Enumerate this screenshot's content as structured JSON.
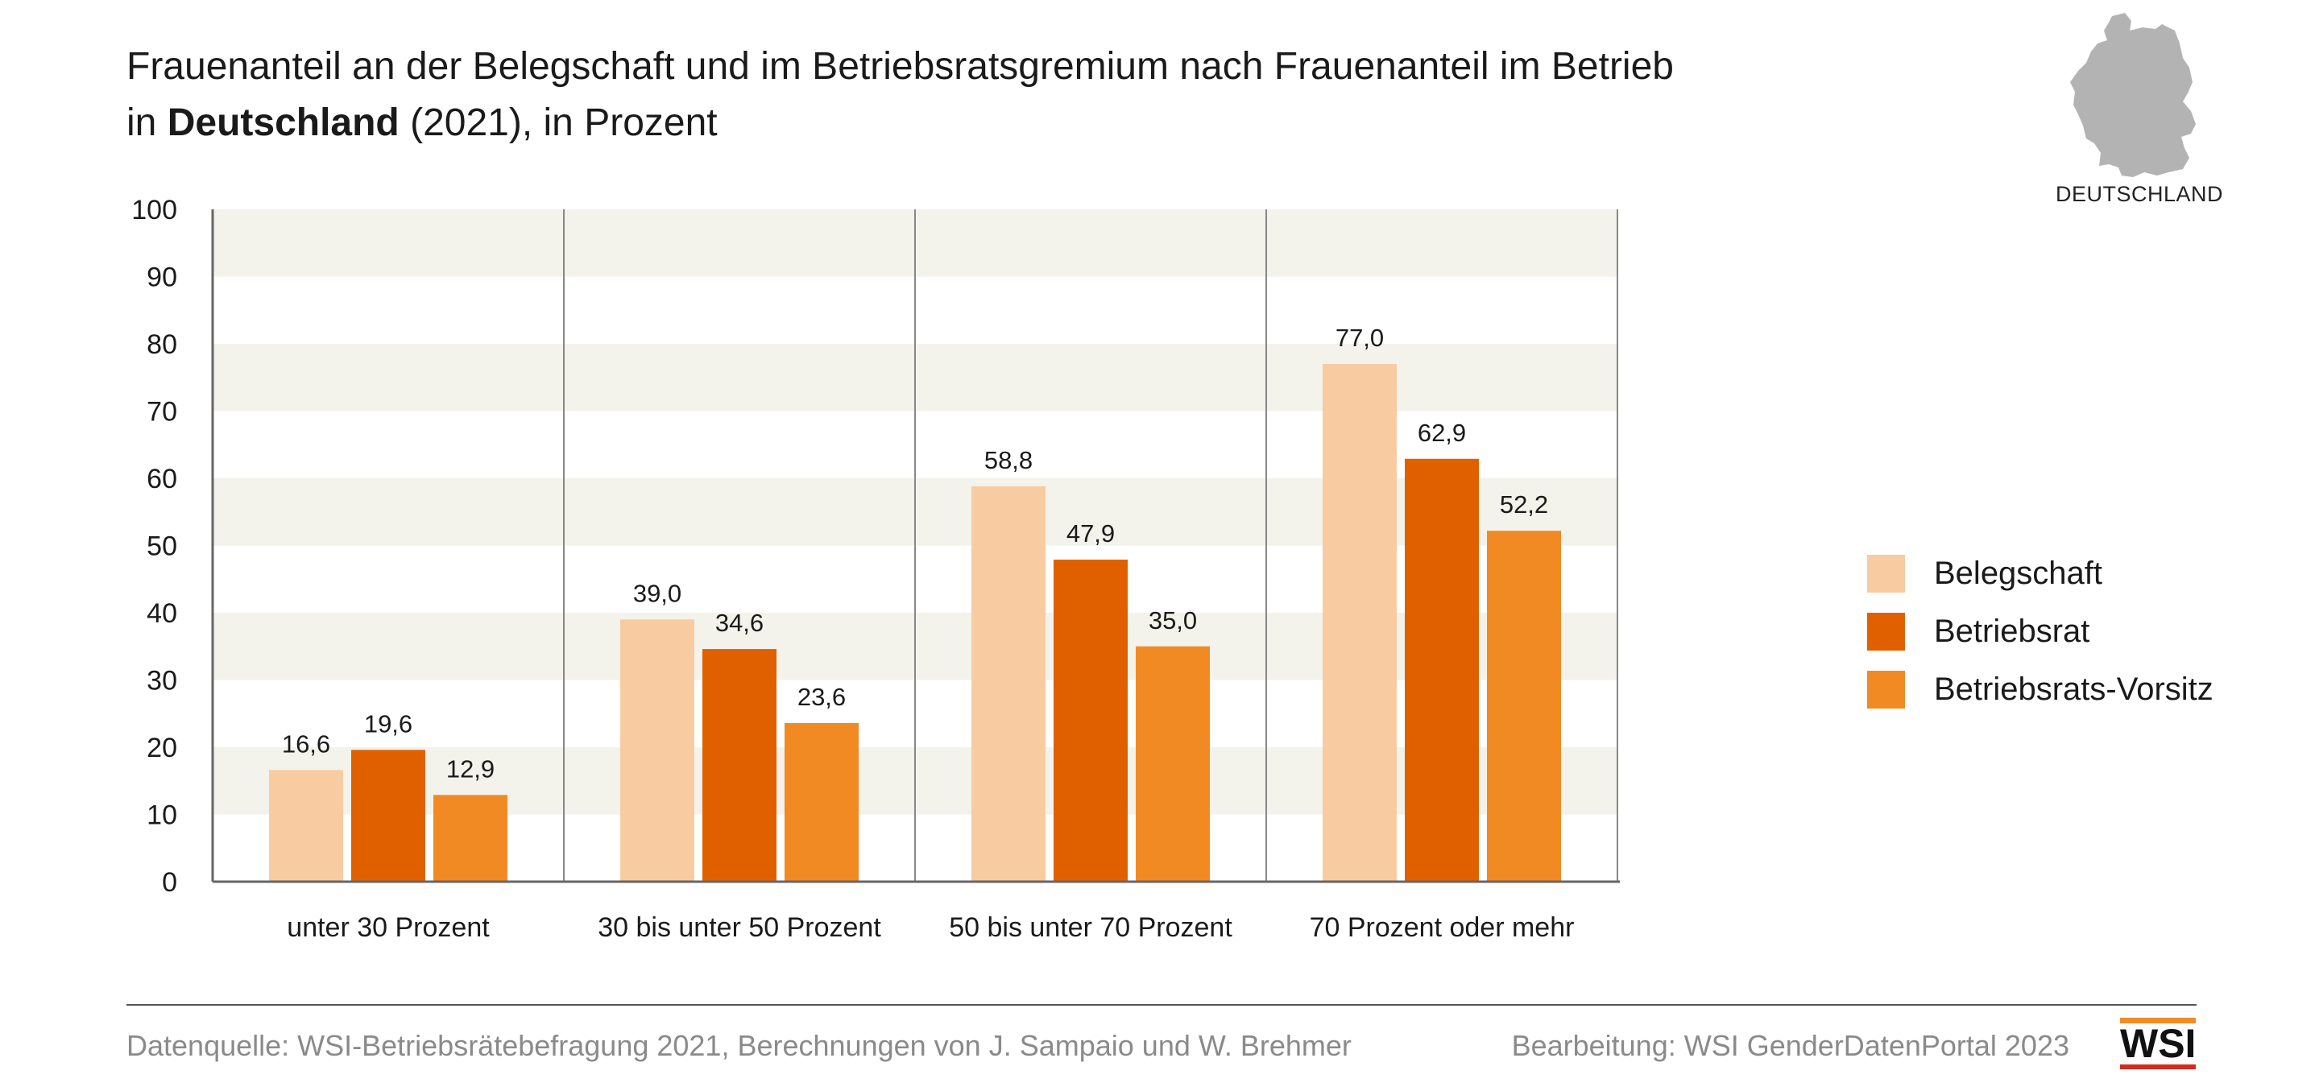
{
  "title": {
    "line1": "Frauenanteil an der Belegschaft und im Betriebsratsgremium nach Frauenanteil im Betrieb",
    "line2_prefix": "in ",
    "line2_bold": "Deutschland",
    "line2_suffix": " (2021), in Prozent"
  },
  "map": {
    "caption": "DEUTSCHLAND",
    "color": "#b3b3b3"
  },
  "chart_data": {
    "type": "bar",
    "categories": [
      "unter 30 Prozent",
      "30 bis unter 50 Prozent",
      "50 bis unter 70 Prozent",
      "70 Prozent oder mehr"
    ],
    "series": [
      {
        "name": "Belegschaft",
        "color": "#f9cba0",
        "values": [
          16.6,
          39.0,
          58.8,
          77.0
        ],
        "labels": [
          "16,6",
          "39,0",
          "58,8",
          "77,0"
        ]
      },
      {
        "name": "Betriebsrat",
        "color": "#e06000",
        "values": [
          19.6,
          34.6,
          47.9,
          62.9
        ],
        "labels": [
          "19,6",
          "34,6",
          "47,9",
          "62,9"
        ]
      },
      {
        "name": "Betriebsrats-Vorsitz",
        "color": "#f28a24",
        "values": [
          12.9,
          23.6,
          35.0,
          52.2
        ],
        "labels": [
          "12,9",
          "23,6",
          "35,0",
          "52,2"
        ]
      }
    ],
    "ylim": [
      0,
      100
    ],
    "yticks": [
      "0",
      "10",
      "20",
      "30",
      "40",
      "50",
      "60",
      "70",
      "80",
      "90",
      "100"
    ],
    "grid_band_color": "#f3f2eb",
    "legend_position": "right"
  },
  "footer": {
    "source": "Datenquelle: WSI-Betriebsrätebefragung 2021, Berechnungen von J. Sampaio und W. Brehmer",
    "edit": "Bearbeitung: WSI GenderDatenPortal 2023",
    "logo": "WSI"
  }
}
